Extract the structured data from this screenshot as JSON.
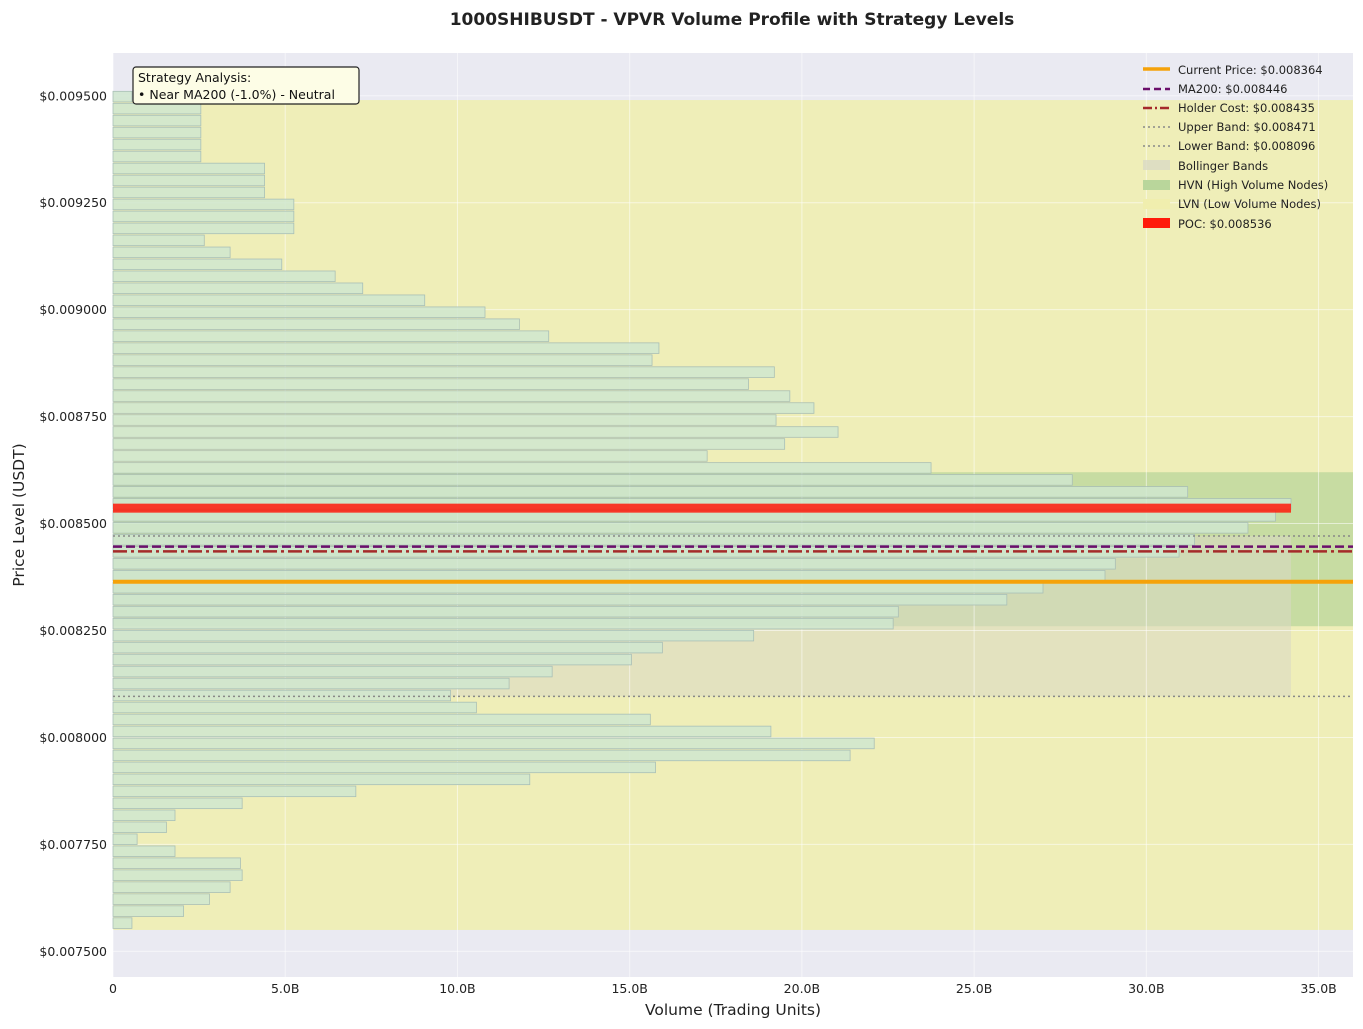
{
  "chart_data": {
    "type": "bar",
    "orientation": "horizontal",
    "title": "1000SHIBUSDT - VPVR Volume Profile with Strategy Levels",
    "xlabel": "Volume (Trading Units)",
    "ylabel": "Price Level (USDT)",
    "xlim": [
      0,
      36.0
    ],
    "ylim": [
      0.00744,
      0.0096
    ],
    "x_ticks": [
      "0",
      "5.0B",
      "10.0B",
      "15.0B",
      "20.0B",
      "25.0B",
      "30.0B",
      "35.0B"
    ],
    "x_tick_values": [
      0,
      5,
      10,
      15,
      20,
      25,
      30,
      35
    ],
    "y_ticks": [
      "$0.007500",
      "$0.007750",
      "$0.008000",
      "$0.008250",
      "$0.008500",
      "$0.008750",
      "$0.009000",
      "$0.009250",
      "$0.009500"
    ],
    "y_tick_values": [
      0.0075,
      0.00775,
      0.008,
      0.00825,
      0.0085,
      0.00875,
      0.009,
      0.00925,
      0.0095
    ],
    "volume_unit": "B",
    "grid": true,
    "legend_placement": "top-right",
    "bin_prices": [
      0.007566,
      0.007594,
      0.007622,
      0.00765,
      0.007678,
      0.007706,
      0.007734,
      0.007762,
      0.00779,
      0.007818,
      0.007846,
      0.007874,
      0.007902,
      0.00793,
      0.007958,
      0.007986,
      0.008014,
      0.008042,
      0.00807,
      0.008098,
      0.008126,
      0.008154,
      0.008182,
      0.00821,
      0.008238,
      0.008266,
      0.008294,
      0.008322,
      0.00835,
      0.008378,
      0.008406,
      0.008434,
      0.008462,
      0.00849,
      0.008518,
      0.008546,
      0.008574,
      0.008602,
      0.00863,
      0.008658,
      0.008686,
      0.008714,
      0.008742,
      0.00877,
      0.008798,
      0.008826,
      0.008854,
      0.008882,
      0.00891,
      0.008938,
      0.008966,
      0.008994,
      0.009022,
      0.00905,
      0.009078,
      0.009106,
      0.009134,
      0.009162,
      0.00919,
      0.009218,
      0.009246,
      0.009274,
      0.009302,
      0.00933,
      0.009358,
      0.009386,
      0.009414,
      0.009442,
      0.00947,
      0.009498
    ],
    "volumes": [
      0.55,
      2.05,
      2.8,
      3.4,
      3.75,
      3.7,
      1.8,
      0.7,
      1.55,
      1.8,
      3.75,
      7.05,
      12.1,
      15.75,
      21.4,
      22.1,
      19.1,
      15.6,
      10.55,
      9.8,
      11.5,
      12.75,
      15.05,
      15.95,
      18.6,
      22.65,
      22.8,
      25.95,
      27.0,
      28.8,
      29.1,
      30.95,
      31.4,
      32.95,
      33.75,
      34.2,
      31.2,
      27.85,
      23.75,
      17.25,
      19.5,
      21.05,
      19.25,
      20.35,
      19.65,
      18.45,
      19.2,
      15.65,
      15.85,
      12.65,
      11.8,
      10.8,
      9.05,
      7.25,
      6.45,
      4.9,
      3.4,
      2.65,
      5.25,
      5.25,
      5.25,
      4.4,
      4.4,
      4.4,
      2.55,
      2.55,
      2.55,
      2.55,
      2.55,
      0.55
    ],
    "bin_height": 2.48e-05,
    "lines": {
      "current_price": {
        "label": "Current Price: $0.008364",
        "value": 0.008364,
        "color": "#f5a20a"
      },
      "ma200": {
        "label": "MA200: $0.008446",
        "value": 0.008446,
        "color": "#6b0f6b"
      },
      "holder_cost": {
        "label": "Holder Cost: $0.008435",
        "value": 0.008435,
        "color": "#a52a2a"
      },
      "upper_band": {
        "label": "Upper Band: $0.008471",
        "value": 0.008471,
        "color": "#888888"
      },
      "lower_band": {
        "label": "Lower Band: $0.008096",
        "value": 0.008096,
        "color": "#888888"
      }
    },
    "regions": {
      "bollinger": {
        "label": "Bollinger Bands",
        "from": 0.008096,
        "to": 0.008471,
        "color": "#d9d9c4"
      },
      "hvn": {
        "label": "HVN (High Volume Nodes)",
        "from": 0.00826,
        "to": 0.00862,
        "color": "#b9d69b"
      },
      "lvn": {
        "label": "LVN (Low Volume Nodes)",
        "from": 0.00755,
        "to": 0.00949,
        "color": "#f0eeae"
      }
    },
    "poc": {
      "label": "POC: $0.008536",
      "value": 0.008536,
      "volume": 34.2,
      "color": "#ff1a0a"
    },
    "annotation": {
      "line1": "Strategy Analysis:",
      "line2": "• Near MA200 (-1.0%) - Neutral"
    },
    "colors": {
      "background": "#eaeaf2",
      "bar_fill": "#cfe6cf",
      "bar_edge": "#a9bfb6",
      "annotation_fill": "#fdfde6"
    }
  }
}
